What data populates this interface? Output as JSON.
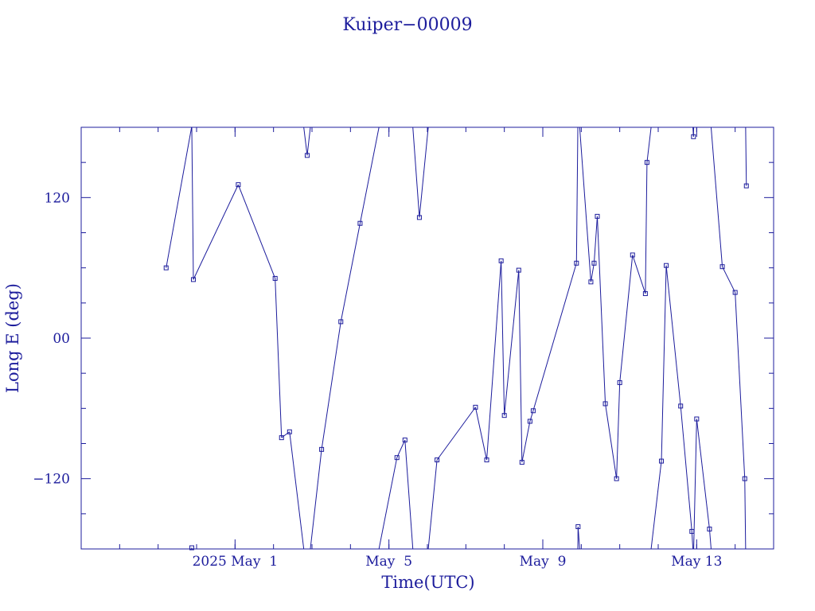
{
  "chart_data": {
    "type": "line",
    "title": "Kuiper−00009",
    "xlabel": "Time(UTC)",
    "ylabel": "Long E (deg)",
    "x_unit": "days (2025)",
    "xlim": [
      "2025-04-27T00:00",
      "2025-05-15T00:00"
    ],
    "ylim": [
      -180,
      180
    ],
    "x_ticks": [
      {
        "value": "2025-05-01T00:00",
        "label": "2025 May  1"
      },
      {
        "value": "2025-05-05T00:00",
        "label": "May  5"
      },
      {
        "value": "2025-05-09T00:00",
        "label": "May  9"
      },
      {
        "value": "2025-05-13T00:00",
        "label": "May 13"
      }
    ],
    "y_ticks": [
      {
        "value": -120,
        "label": "−120"
      },
      {
        "value": 0,
        "label": "00"
      },
      {
        "value": 120,
        "label": "120"
      }
    ],
    "grid": false,
    "color": "#1c1c9c",
    "series": [
      {
        "wrap": true,
        "points": [
          [
            "2025-04-29T05:00",
            60
          ],
          [
            "2025-04-29T21:00",
            -179
          ],
          [
            "2025-04-29T22:00",
            50
          ],
          [
            "2025-05-01T02:00",
            131
          ],
          [
            "2025-05-02T01:00",
            51
          ],
          [
            "2025-05-02T05:00",
            -85
          ],
          [
            "2025-05-02T10:00",
            -80
          ],
          [
            "2025-05-02T21:00",
            156
          ],
          [
            "2025-05-03T06:00",
            -95
          ],
          [
            "2025-05-03T18:00",
            14
          ],
          [
            "2025-05-04T06:00",
            98
          ],
          [
            "2025-05-05T05:00",
            -102
          ],
          [
            "2025-05-05T10:00",
            -87
          ],
          [
            "2025-05-05T19:00",
            103
          ],
          [
            "2025-05-06T06:00",
            -104
          ],
          [
            "2025-05-07T06:00",
            -59
          ],
          [
            "2025-05-07T13:00",
            -104
          ],
          [
            "2025-05-07T22:00",
            66
          ],
          [
            "2025-05-08T00:00",
            -66
          ],
          [
            "2025-05-08T09:00",
            58
          ],
          [
            "2025-05-08T11:00",
            -106
          ],
          [
            "2025-05-08T16:00",
            -71
          ],
          [
            "2025-05-08T18:00",
            -62
          ],
          [
            "2025-05-09T21:00",
            64
          ],
          [
            "2025-05-09T22:00",
            -161
          ],
          [
            "2025-05-10T06:00",
            48
          ],
          [
            "2025-05-10T08:00",
            64
          ],
          [
            "2025-05-10T10:00",
            104
          ],
          [
            "2025-05-10T15:00",
            -56
          ],
          [
            "2025-05-10T22:00",
            -120
          ],
          [
            "2025-05-11T00:00",
            -38
          ],
          [
            "2025-05-11T08:00",
            71
          ],
          [
            "2025-05-11T16:00",
            38
          ],
          [
            "2025-05-11T17:00",
            150
          ],
          [
            "2025-05-12T02:00",
            -105
          ],
          [
            "2025-05-12T05:00",
            62
          ],
          [
            "2025-05-12T14:00",
            -58
          ],
          [
            "2025-05-12T21:00",
            -165
          ],
          [
            "2025-05-12T22:00",
            172
          ],
          [
            "2025-05-13T00:00",
            -69
          ],
          [
            "2025-05-13T08:00",
            -163
          ],
          [
            "2025-05-13T16:00",
            61
          ],
          [
            "2025-05-14T00:00",
            39
          ],
          [
            "2025-05-14T06:00",
            -120
          ],
          [
            "2025-05-14T07:00",
            130
          ]
        ]
      }
    ]
  }
}
